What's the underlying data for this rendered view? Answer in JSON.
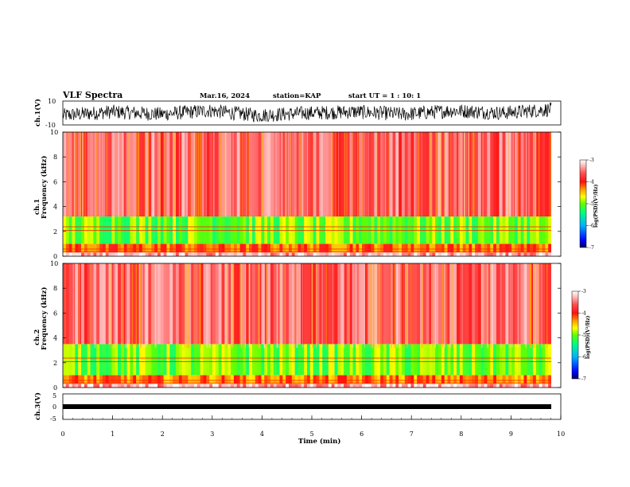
{
  "header": {
    "title": "VLF Spectra",
    "date": "Mar.16, 2024",
    "station": "station=KAP",
    "start": "start  UT =   1 : 10: 1"
  },
  "panels": {
    "ch1_wave": {
      "ylabel": "ch.1(V)",
      "ticks": [
        "10",
        "-10"
      ]
    },
    "ch1_spec": {
      "ylabel_top": "ch.1",
      "ylabel": "Frequency  (kHz)"
    },
    "ch2_spec": {
      "ylabel_top": "ch.2",
      "ylabel": "Frequency  (kHz)"
    },
    "ch3_wave": {
      "ylabel": "ch.3(V)",
      "ticks": [
        "5",
        "0",
        "-5"
      ]
    }
  },
  "colorbar": {
    "ticks": [
      "-3",
      "-4",
      "-5",
      "-6",
      "-7"
    ],
    "label": "log(PSD)(V²/Hz)",
    "colors": [
      "#000080",
      "#0000ff",
      "#00c0ff",
      "#00ff60",
      "#80ff00",
      "#ffff00",
      "#ffa000",
      "#ff2000",
      "#ff6060",
      "#ffd0d0",
      "#ffffff"
    ]
  },
  "chart_data": [
    {
      "type": "line",
      "name": "ch.1 waveform",
      "ylabel": "ch.1(V)",
      "ylim": [
        -10,
        10
      ],
      "xlim": [
        0,
        10
      ],
      "note_values": "noisy signal oscillating roughly between -8 and 8 V",
      "x": [
        0,
        1,
        2,
        3,
        4,
        5,
        6,
        7,
        8,
        9,
        9.8
      ],
      "y": [
        -2,
        1,
        -1,
        2,
        -2,
        0,
        1,
        -1,
        2,
        0,
        3
      ]
    },
    {
      "type": "heatmap",
      "name": "ch.1 spectrogram",
      "xlabel": "Time  (min)",
      "ylabel": "Frequency  (kHz)",
      "xlim": [
        0,
        10
      ],
      "ylim": [
        0,
        10
      ],
      "yticks": [
        0,
        2,
        4,
        6,
        8,
        10
      ],
      "bands": [
        {
          "fmin": 0,
          "fmax": 0.3,
          "level": -3.3
        },
        {
          "fmin": 0.3,
          "fmax": 1.0,
          "level": -4.2
        },
        {
          "fmin": 1.0,
          "fmax": 3.2,
          "level": -5.0
        },
        {
          "fmin": 3.2,
          "fmax": 10,
          "level": -3.6
        }
      ]
    },
    {
      "type": "heatmap",
      "name": "ch.2 spectrogram",
      "xlabel": "Time  (min)",
      "ylabel": "Frequency  (kHz)",
      "xlim": [
        0,
        10
      ],
      "ylim": [
        0,
        10
      ],
      "yticks": [
        0,
        2,
        4,
        6,
        8,
        10
      ],
      "bands": [
        {
          "fmin": 0,
          "fmax": 0.3,
          "level": -3.3
        },
        {
          "fmin": 0.3,
          "fmax": 1.0,
          "level": -4.3
        },
        {
          "fmin": 1.0,
          "fmax": 3.5,
          "level": -5.0
        },
        {
          "fmin": 3.5,
          "fmax": 10,
          "level": -3.6
        }
      ]
    },
    {
      "type": "line",
      "name": "ch.3 waveform",
      "ylabel": "ch.3(V)",
      "ylim": [
        -5,
        5
      ],
      "xlim": [
        0,
        10
      ],
      "x": [
        0,
        9.8
      ],
      "y": [
        0,
        0
      ],
      "xticks": [
        "0",
        "1",
        "2",
        "3",
        "4",
        "5",
        "6",
        "7",
        "8",
        "9",
        "10"
      ],
      "xlabel": "Time  (min)"
    }
  ]
}
